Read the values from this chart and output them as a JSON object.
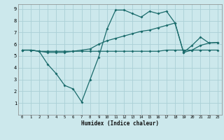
{
  "xlabel": "Humidex (Indice chaleur)",
  "background_color": "#cce8ec",
  "grid_color": "#aad0d6",
  "line_color": "#1a6b6b",
  "xlim": [
    -0.5,
    23.5
  ],
  "ylim": [
    0,
    9.4
  ],
  "xticks": [
    0,
    1,
    2,
    3,
    4,
    5,
    6,
    7,
    8,
    9,
    10,
    11,
    12,
    13,
    14,
    15,
    16,
    17,
    18,
    19,
    20,
    21,
    22,
    23
  ],
  "yticks": [
    1,
    2,
    3,
    4,
    5,
    6,
    7,
    8,
    9
  ],
  "series1_x": [
    0,
    1,
    2,
    3,
    4,
    5,
    6,
    7,
    8,
    9,
    10,
    11,
    12,
    13,
    14,
    15,
    16,
    17,
    18,
    19,
    20,
    21,
    22,
    23
  ],
  "series1_y": [
    5.5,
    5.5,
    5.4,
    5.4,
    5.4,
    5.4,
    5.4,
    5.4,
    5.4,
    5.4,
    5.4,
    5.4,
    5.4,
    5.4,
    5.4,
    5.4,
    5.4,
    5.5,
    5.5,
    5.5,
    5.5,
    5.5,
    5.5,
    5.5
  ],
  "series2_x": [
    0,
    1,
    2,
    3,
    4,
    5,
    6,
    7,
    8,
    9,
    10,
    11,
    12,
    13,
    14,
    15,
    16,
    17,
    18,
    19,
    20,
    21,
    22,
    23
  ],
  "series2_y": [
    5.5,
    5.5,
    5.4,
    4.3,
    3.5,
    2.5,
    2.2,
    1.1,
    3.0,
    4.9,
    7.3,
    8.9,
    8.9,
    8.6,
    8.3,
    8.8,
    8.6,
    8.8,
    7.8,
    5.3,
    5.9,
    6.6,
    6.1,
    6.15
  ],
  "series3_x": [
    0,
    1,
    2,
    3,
    4,
    5,
    6,
    7,
    8,
    9,
    10,
    11,
    12,
    13,
    14,
    15,
    16,
    17,
    18,
    19,
    20,
    21,
    22,
    23
  ],
  "series3_y": [
    5.5,
    5.5,
    5.4,
    5.3,
    5.3,
    5.3,
    5.4,
    5.5,
    5.6,
    6.0,
    6.3,
    6.5,
    6.7,
    6.9,
    7.1,
    7.2,
    7.4,
    7.6,
    7.8,
    5.3,
    5.5,
    5.9,
    6.1,
    6.15
  ]
}
